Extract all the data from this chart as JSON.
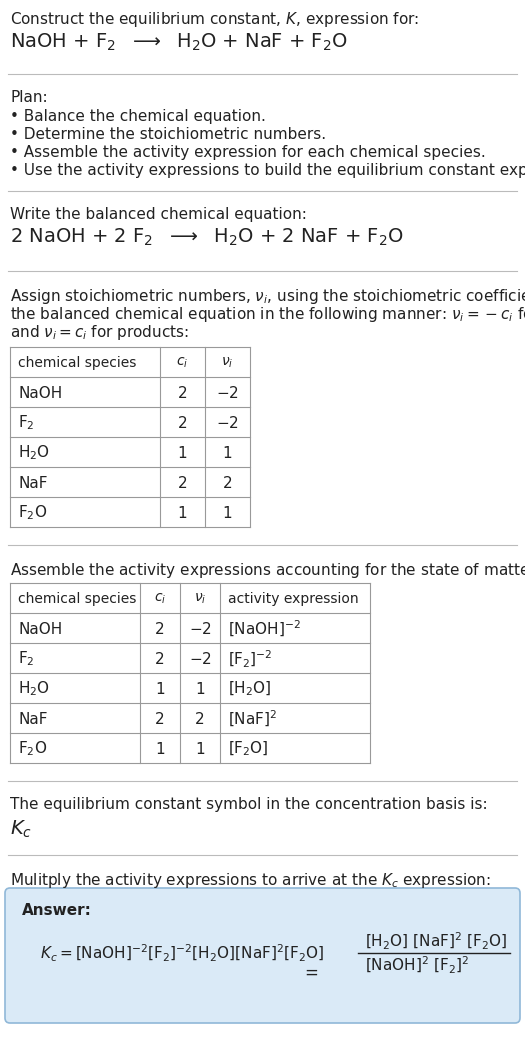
{
  "title_line1": "Construct the equilibrium constant, $K$, expression for:",
  "reaction_unbalanced": "NaOH + F$_2$  $\\longrightarrow$  H$_2$O + NaF + F$_2$O",
  "plan_header": "Plan:",
  "plan_items": [
    "Balance the chemical equation.",
    "Determine the stoichiometric numbers.",
    "Assemble the activity expression for each chemical species.",
    "Use the activity expressions to build the equilibrium constant expression."
  ],
  "balanced_label": "Write the balanced chemical equation:",
  "reaction_balanced": "2 NaOH + 2 F$_2$  $\\longrightarrow$  H$_2$O + 2 NaF + F$_2$O",
  "stoich_intro_lines": [
    "Assign stoichiometric numbers, $\\nu_i$, using the stoichiometric coefficients, $c_i$, from",
    "the balanced chemical equation in the following manner: $\\nu_i = -c_i$ for reactants",
    "and $\\nu_i = c_i$ for products:"
  ],
  "table1_headers": [
    "chemical species",
    "$c_i$",
    "$\\nu_i$"
  ],
  "table1_data": [
    [
      "NaOH",
      "2",
      "$-2$"
    ],
    [
      "F$_2$",
      "2",
      "$-2$"
    ],
    [
      "H$_2$O",
      "1",
      "1"
    ],
    [
      "NaF",
      "2",
      "2"
    ],
    [
      "F$_2$O",
      "1",
      "1"
    ]
  ],
  "activity_intro": "Assemble the activity expressions accounting for the state of matter and $\\nu_i$:",
  "table2_headers": [
    "chemical species",
    "$c_i$",
    "$\\nu_i$",
    "activity expression"
  ],
  "table2_data": [
    [
      "NaOH",
      "2",
      "$-2$",
      "[NaOH]$^{-2}$"
    ],
    [
      "F$_2$",
      "2",
      "$-2$",
      "[F$_2$]$^{-2}$"
    ],
    [
      "H$_2$O",
      "1",
      "1",
      "[H$_2$O]"
    ],
    [
      "NaF",
      "2",
      "2",
      "[NaF]$^2$"
    ],
    [
      "F$_2$O",
      "1",
      "1",
      "[F$_2$O]"
    ]
  ],
  "kc_label": "The equilibrium constant symbol in the concentration basis is:",
  "kc_symbol": "$K_c$",
  "multiply_label": "Mulitply the activity expressions to arrive at the $K_c$ expression:",
  "answer_label": "Answer:",
  "bg_color": "#ffffff",
  "table_border_color": "#999999",
  "answer_bg_color": "#daeaf7",
  "answer_border_color": "#90b8d8",
  "separator_color": "#bbbbbb",
  "text_color": "#222222"
}
